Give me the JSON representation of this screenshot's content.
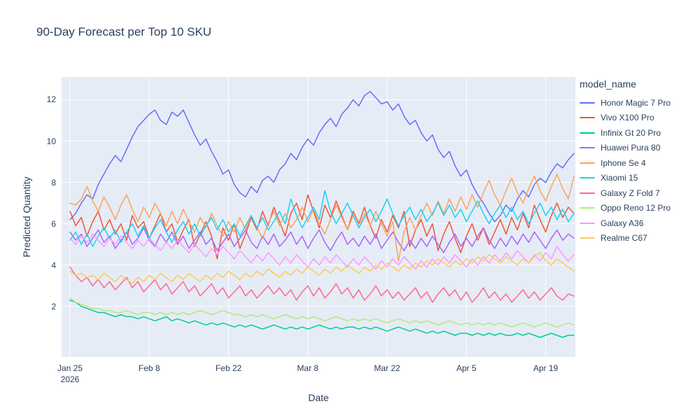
{
  "page": {
    "background": "#ffffff"
  },
  "chart_data": {
    "type": "line",
    "title": "90-Day Forecast per Top 10 SKU",
    "xlabel": "Date",
    "ylabel": "Predicted Quantity",
    "legend_title": "model_name",
    "x_unit": "day",
    "x_days": 90,
    "x_start_date_label": "Jan 25 2026",
    "x_ticks": [
      {
        "day": 0,
        "label": "Jan 25",
        "sublabel": "2026"
      },
      {
        "day": 14,
        "label": "Feb 8"
      },
      {
        "day": 28,
        "label": "Feb 22"
      },
      {
        "day": 42,
        "label": "Mar 8"
      },
      {
        "day": 56,
        "label": "Mar 22"
      },
      {
        "day": 70,
        "label": "Apr 5"
      },
      {
        "day": 84,
        "label": "Apr 19"
      }
    ],
    "y_ticks": [
      2,
      4,
      6,
      8,
      10,
      12
    ],
    "y_range": [
      -0.45,
      13.1
    ],
    "grid": true,
    "legend_position": "right",
    "colors": {
      "plot_bg": "#E5ECF6",
      "grid": "#FFFFFF",
      "text": "#2A3F5F",
      "paper": "#FFFFFF"
    },
    "series": [
      {
        "name": "Honor Magic 7 Pro",
        "color": "#636EFA",
        "values": [
          6.2,
          6.5,
          7.0,
          7.4,
          7.2,
          7.9,
          8.4,
          8.9,
          9.3,
          9.0,
          9.6,
          10.2,
          10.7,
          11.0,
          11.3,
          11.5,
          11.0,
          10.8,
          11.4,
          11.2,
          11.5,
          10.9,
          10.3,
          9.8,
          10.1,
          9.5,
          9.0,
          8.4,
          8.6,
          7.9,
          7.5,
          7.3,
          7.8,
          7.5,
          8.1,
          8.3,
          8.0,
          8.6,
          8.9,
          9.4,
          9.1,
          9.7,
          10.1,
          9.8,
          10.4,
          10.8,
          11.1,
          10.7,
          11.3,
          11.6,
          12.0,
          11.7,
          12.2,
          12.4,
          12.1,
          11.8,
          11.9,
          11.5,
          11.8,
          11.2,
          10.8,
          11.0,
          10.4,
          10.0,
          10.3,
          9.6,
          9.2,
          9.5,
          8.8,
          8.3,
          8.6,
          7.9,
          7.4,
          7.0,
          6.5,
          6.1,
          6.4,
          6.9,
          6.6,
          7.2,
          7.6,
          7.3,
          7.9,
          8.2,
          8.0,
          8.5,
          8.9,
          8.7,
          9.1,
          9.4
        ]
      },
      {
        "name": "Vivo X100 Pro",
        "color": "#EF553B",
        "values": [
          6.6,
          5.9,
          6.3,
          5.4,
          6.1,
          6.6,
          5.7,
          6.2,
          5.5,
          6.0,
          5.2,
          6.4,
          5.8,
          6.1,
          5.3,
          5.9,
          6.5,
          5.6,
          6.0,
          5.1,
          5.7,
          6.2,
          4.9,
          5.5,
          6.1,
          5.4,
          4.3,
          5.8,
          5.2,
          6.0,
          4.8,
          5.5,
          6.3,
          5.7,
          6.6,
          5.9,
          6.8,
          6.1,
          5.4,
          6.5,
          7.0,
          6.2,
          7.4,
          6.6,
          5.8,
          6.9,
          6.3,
          7.1,
          6.4,
          5.7,
          6.6,
          6.0,
          6.8,
          5.9,
          5.3,
          6.2,
          5.6,
          6.4,
          5.8,
          6.6,
          4.9,
          5.7,
          6.2,
          5.4,
          6.0,
          4.7,
          5.5,
          6.1,
          5.3,
          4.6,
          5.4,
          6.0,
          5.2,
          5.8,
          5.0,
          5.6,
          6.2,
          5.5,
          6.3,
          5.7,
          6.5,
          5.8,
          6.9,
          6.2,
          5.6,
          6.4,
          7.0,
          6.3,
          6.8,
          6.5
        ]
      },
      {
        "name": "Infinix Gt 20 Pro",
        "color": "#00CC96",
        "values": [
          2.3,
          2.2,
          2.0,
          1.9,
          1.8,
          1.7,
          1.7,
          1.6,
          1.5,
          1.6,
          1.5,
          1.5,
          1.4,
          1.5,
          1.4,
          1.3,
          1.4,
          1.5,
          1.3,
          1.4,
          1.3,
          1.2,
          1.3,
          1.2,
          1.1,
          1.2,
          1.1,
          1.2,
          1.1,
          1.0,
          1.1,
          1.0,
          1.1,
          1.0,
          0.9,
          1.0,
          1.1,
          1.0,
          0.9,
          1.0,
          0.9,
          1.0,
          0.9,
          1.0,
          1.1,
          1.0,
          0.9,
          1.0,
          0.9,
          1.0,
          1.0,
          0.9,
          1.0,
          0.9,
          1.0,
          0.9,
          0.8,
          0.9,
          1.0,
          0.9,
          0.8,
          0.9,
          0.8,
          0.7,
          0.8,
          0.7,
          0.8,
          0.7,
          0.6,
          0.7,
          0.7,
          0.6,
          0.7,
          0.6,
          0.7,
          0.6,
          0.7,
          0.6,
          0.6,
          0.7,
          0.6,
          0.7,
          0.6,
          0.5,
          0.6,
          0.7,
          0.6,
          0.5,
          0.6,
          0.6
        ]
      },
      {
        "name": "Huawei Pura 80",
        "color": "#AB63FA",
        "values": [
          5.6,
          5.2,
          5.5,
          4.9,
          5.3,
          5.7,
          5.1,
          5.4,
          4.8,
          5.2,
          5.6,
          5.0,
          5.3,
          5.8,
          5.2,
          4.9,
          5.5,
          5.1,
          5.6,
          5.0,
          5.4,
          4.8,
          5.2,
          5.6,
          5.0,
          5.3,
          4.7,
          5.1,
          5.5,
          4.9,
          5.3,
          5.7,
          5.1,
          4.8,
          5.4,
          5.0,
          5.5,
          4.9,
          5.2,
          5.6,
          5.0,
          5.4,
          4.8,
          5.3,
          5.7,
          5.1,
          4.7,
          5.2,
          5.6,
          5.0,
          5.3,
          4.9,
          5.4,
          5.0,
          5.5,
          4.8,
          5.2,
          5.6,
          5.1,
          4.7,
          5.2,
          4.8,
          5.3,
          4.9,
          5.4,
          5.0,
          4.6,
          5.1,
          5.5,
          4.9,
          5.3,
          4.9,
          5.4,
          5.8,
          5.2,
          4.8,
          5.3,
          4.9,
          5.4,
          5.0,
          5.5,
          5.1,
          5.6,
          5.2,
          4.8,
          5.3,
          5.7,
          5.2,
          5.5,
          5.3
        ]
      },
      {
        "name": "Iphone Se 4",
        "color": "#FFA15A",
        "values": [
          7.0,
          6.9,
          7.2,
          7.8,
          7.1,
          6.6,
          7.3,
          6.8,
          6.2,
          6.9,
          7.4,
          6.7,
          6.1,
          6.8,
          6.3,
          7.0,
          6.5,
          5.9,
          6.6,
          6.0,
          6.7,
          6.1,
          5.6,
          6.3,
          5.8,
          6.5,
          5.9,
          5.4,
          6.1,
          5.6,
          6.3,
          5.7,
          6.4,
          5.8,
          5.3,
          6.0,
          6.6,
          5.9,
          6.5,
          5.8,
          6.2,
          6.8,
          6.1,
          6.7,
          6.0,
          5.5,
          6.2,
          6.9,
          6.3,
          5.7,
          6.4,
          5.8,
          6.5,
          5.9,
          6.6,
          6.0,
          5.4,
          6.1,
          4.2,
          5.6,
          6.3,
          5.7,
          6.4,
          7.0,
          6.4,
          7.1,
          6.5,
          7.2,
          6.6,
          7.3,
          6.7,
          7.4,
          6.8,
          7.5,
          8.1,
          7.4,
          6.9,
          7.6,
          8.2,
          7.5,
          7.0,
          7.7,
          8.3,
          7.6,
          7.1,
          7.8,
          8.4,
          7.7,
          7.2,
          8.3
        ]
      },
      {
        "name": "Xiaomi 15",
        "color": "#19D3F3",
        "values": [
          5.2,
          5.6,
          5.0,
          5.5,
          4.9,
          5.4,
          5.8,
          5.3,
          5.7,
          5.1,
          5.6,
          6.0,
          5.4,
          5.9,
          5.3,
          5.8,
          6.2,
          5.6,
          5.1,
          5.7,
          6.1,
          5.5,
          6.0,
          5.4,
          5.9,
          6.3,
          5.7,
          6.2,
          5.6,
          6.0,
          5.4,
          5.9,
          6.4,
          5.8,
          6.3,
          5.7,
          6.1,
          6.6,
          6.0,
          7.2,
          6.4,
          5.8,
          6.3,
          6.8,
          6.2,
          7.6,
          6.6,
          6.0,
          6.5,
          7.0,
          6.4,
          5.8,
          6.3,
          6.7,
          6.1,
          6.6,
          7.2,
          6.5,
          5.9,
          6.4,
          6.8,
          6.2,
          6.7,
          6.1,
          6.5,
          7.0,
          6.4,
          6.9,
          6.3,
          6.7,
          6.1,
          6.6,
          7.1,
          6.5,
          6.0,
          6.5,
          6.9,
          6.3,
          6.8,
          6.2,
          6.6,
          6.0,
          6.5,
          7.0,
          6.4,
          6.8,
          6.2,
          6.7,
          6.1,
          6.5
        ]
      },
      {
        "name": "Galaxy Z Fold 7",
        "color": "#FF6692",
        "values": [
          3.9,
          3.5,
          3.2,
          3.4,
          3.0,
          3.3,
          2.9,
          3.2,
          2.8,
          3.1,
          3.4,
          2.9,
          3.2,
          2.7,
          3.0,
          3.3,
          2.8,
          3.1,
          2.6,
          2.9,
          3.2,
          2.7,
          3.0,
          2.5,
          2.8,
          3.1,
          2.6,
          2.9,
          2.4,
          2.7,
          3.0,
          2.5,
          2.8,
          2.4,
          2.7,
          3.0,
          2.6,
          2.9,
          2.5,
          2.8,
          2.3,
          2.7,
          3.0,
          2.5,
          2.9,
          2.4,
          2.7,
          3.1,
          2.6,
          2.9,
          2.4,
          2.8,
          2.3,
          2.6,
          3.0,
          2.5,
          2.8,
          2.4,
          2.7,
          2.3,
          2.6,
          2.9,
          2.4,
          2.7,
          2.2,
          2.6,
          2.9,
          2.5,
          2.8,
          2.3,
          2.7,
          2.2,
          2.5,
          2.9,
          2.4,
          2.7,
          2.3,
          2.6,
          2.2,
          2.5,
          2.8,
          2.4,
          2.7,
          2.3,
          2.6,
          2.9,
          2.5,
          2.3,
          2.6,
          2.5
        ]
      },
      {
        "name": "Oppo Reno 12 Pro",
        "color": "#B6E880",
        "values": [
          2.4,
          2.2,
          2.1,
          2.0,
          1.9,
          1.9,
          1.8,
          1.8,
          1.7,
          1.7,
          1.8,
          1.7,
          1.6,
          1.7,
          1.7,
          1.6,
          1.7,
          1.6,
          1.7,
          1.6,
          1.7,
          1.6,
          1.7,
          1.8,
          1.7,
          1.6,
          1.7,
          1.8,
          1.7,
          1.6,
          1.6,
          1.5,
          1.6,
          1.5,
          1.6,
          1.5,
          1.4,
          1.5,
          1.6,
          1.5,
          1.4,
          1.5,
          1.4,
          1.5,
          1.4,
          1.3,
          1.4,
          1.5,
          1.4,
          1.3,
          1.4,
          1.3,
          1.4,
          1.3,
          1.4,
          1.3,
          1.2,
          1.3,
          1.4,
          1.3,
          1.2,
          1.3,
          1.2,
          1.3,
          1.2,
          1.1,
          1.2,
          1.3,
          1.2,
          1.1,
          1.2,
          1.1,
          1.2,
          1.1,
          1.2,
          1.1,
          1.2,
          1.1,
          1.0,
          1.1,
          1.2,
          1.1,
          1.0,
          1.1,
          1.2,
          1.1,
          1.0,
          1.1,
          1.2,
          1.1
        ]
      },
      {
        "name": "Galaxy A36",
        "color": "#FF97FF",
        "values": [
          5.3,
          5.0,
          5.4,
          5.1,
          5.5,
          5.2,
          4.9,
          5.3,
          5.0,
          5.4,
          5.1,
          4.8,
          5.2,
          4.9,
          5.3,
          5.0,
          4.7,
          5.1,
          4.8,
          5.2,
          4.9,
          4.6,
          5.0,
          4.7,
          4.4,
          4.8,
          4.5,
          4.9,
          4.6,
          4.3,
          4.7,
          4.4,
          4.1,
          4.5,
          4.2,
          4.6,
          4.3,
          4.0,
          4.4,
          4.1,
          4.5,
          4.2,
          3.9,
          4.3,
          4.0,
          4.4,
          4.1,
          4.5,
          4.2,
          3.9,
          4.3,
          4.0,
          4.4,
          4.1,
          3.8,
          4.2,
          3.9,
          4.3,
          4.0,
          4.4,
          4.1,
          3.8,
          4.2,
          3.9,
          4.3,
          4.0,
          4.4,
          4.1,
          4.5,
          4.2,
          3.9,
          4.3,
          4.0,
          4.4,
          4.1,
          4.5,
          4.2,
          4.6,
          4.3,
          4.7,
          4.4,
          4.1,
          4.5,
          4.2,
          4.6,
          4.3,
          4.9,
          4.5,
          4.2,
          4.5
        ]
      },
      {
        "name": "Realme C67",
        "color": "#FECB52",
        "values": [
          3.7,
          3.5,
          3.6,
          3.4,
          3.5,
          3.3,
          3.6,
          3.4,
          3.2,
          3.5,
          3.3,
          3.1,
          3.4,
          3.2,
          3.5,
          3.3,
          3.6,
          3.4,
          3.2,
          3.5,
          3.3,
          3.6,
          3.4,
          3.2,
          3.5,
          3.3,
          3.6,
          3.4,
          3.7,
          3.5,
          3.3,
          3.6,
          3.4,
          3.7,
          3.5,
          3.8,
          3.6,
          3.4,
          3.7,
          3.5,
          3.8,
          3.6,
          3.9,
          3.7,
          3.5,
          3.8,
          3.6,
          3.9,
          3.7,
          4.0,
          3.8,
          3.6,
          3.9,
          3.7,
          4.0,
          3.8,
          4.1,
          3.9,
          3.7,
          4.0,
          3.8,
          4.1,
          3.9,
          4.2,
          4.0,
          4.3,
          4.1,
          3.9,
          4.2,
          4.0,
          4.3,
          4.1,
          4.4,
          4.2,
          4.5,
          4.3,
          4.1,
          4.4,
          4.2,
          4.0,
          4.3,
          4.1,
          4.4,
          4.6,
          4.2,
          4.0,
          4.3,
          4.1,
          3.9,
          3.7
        ]
      }
    ]
  }
}
